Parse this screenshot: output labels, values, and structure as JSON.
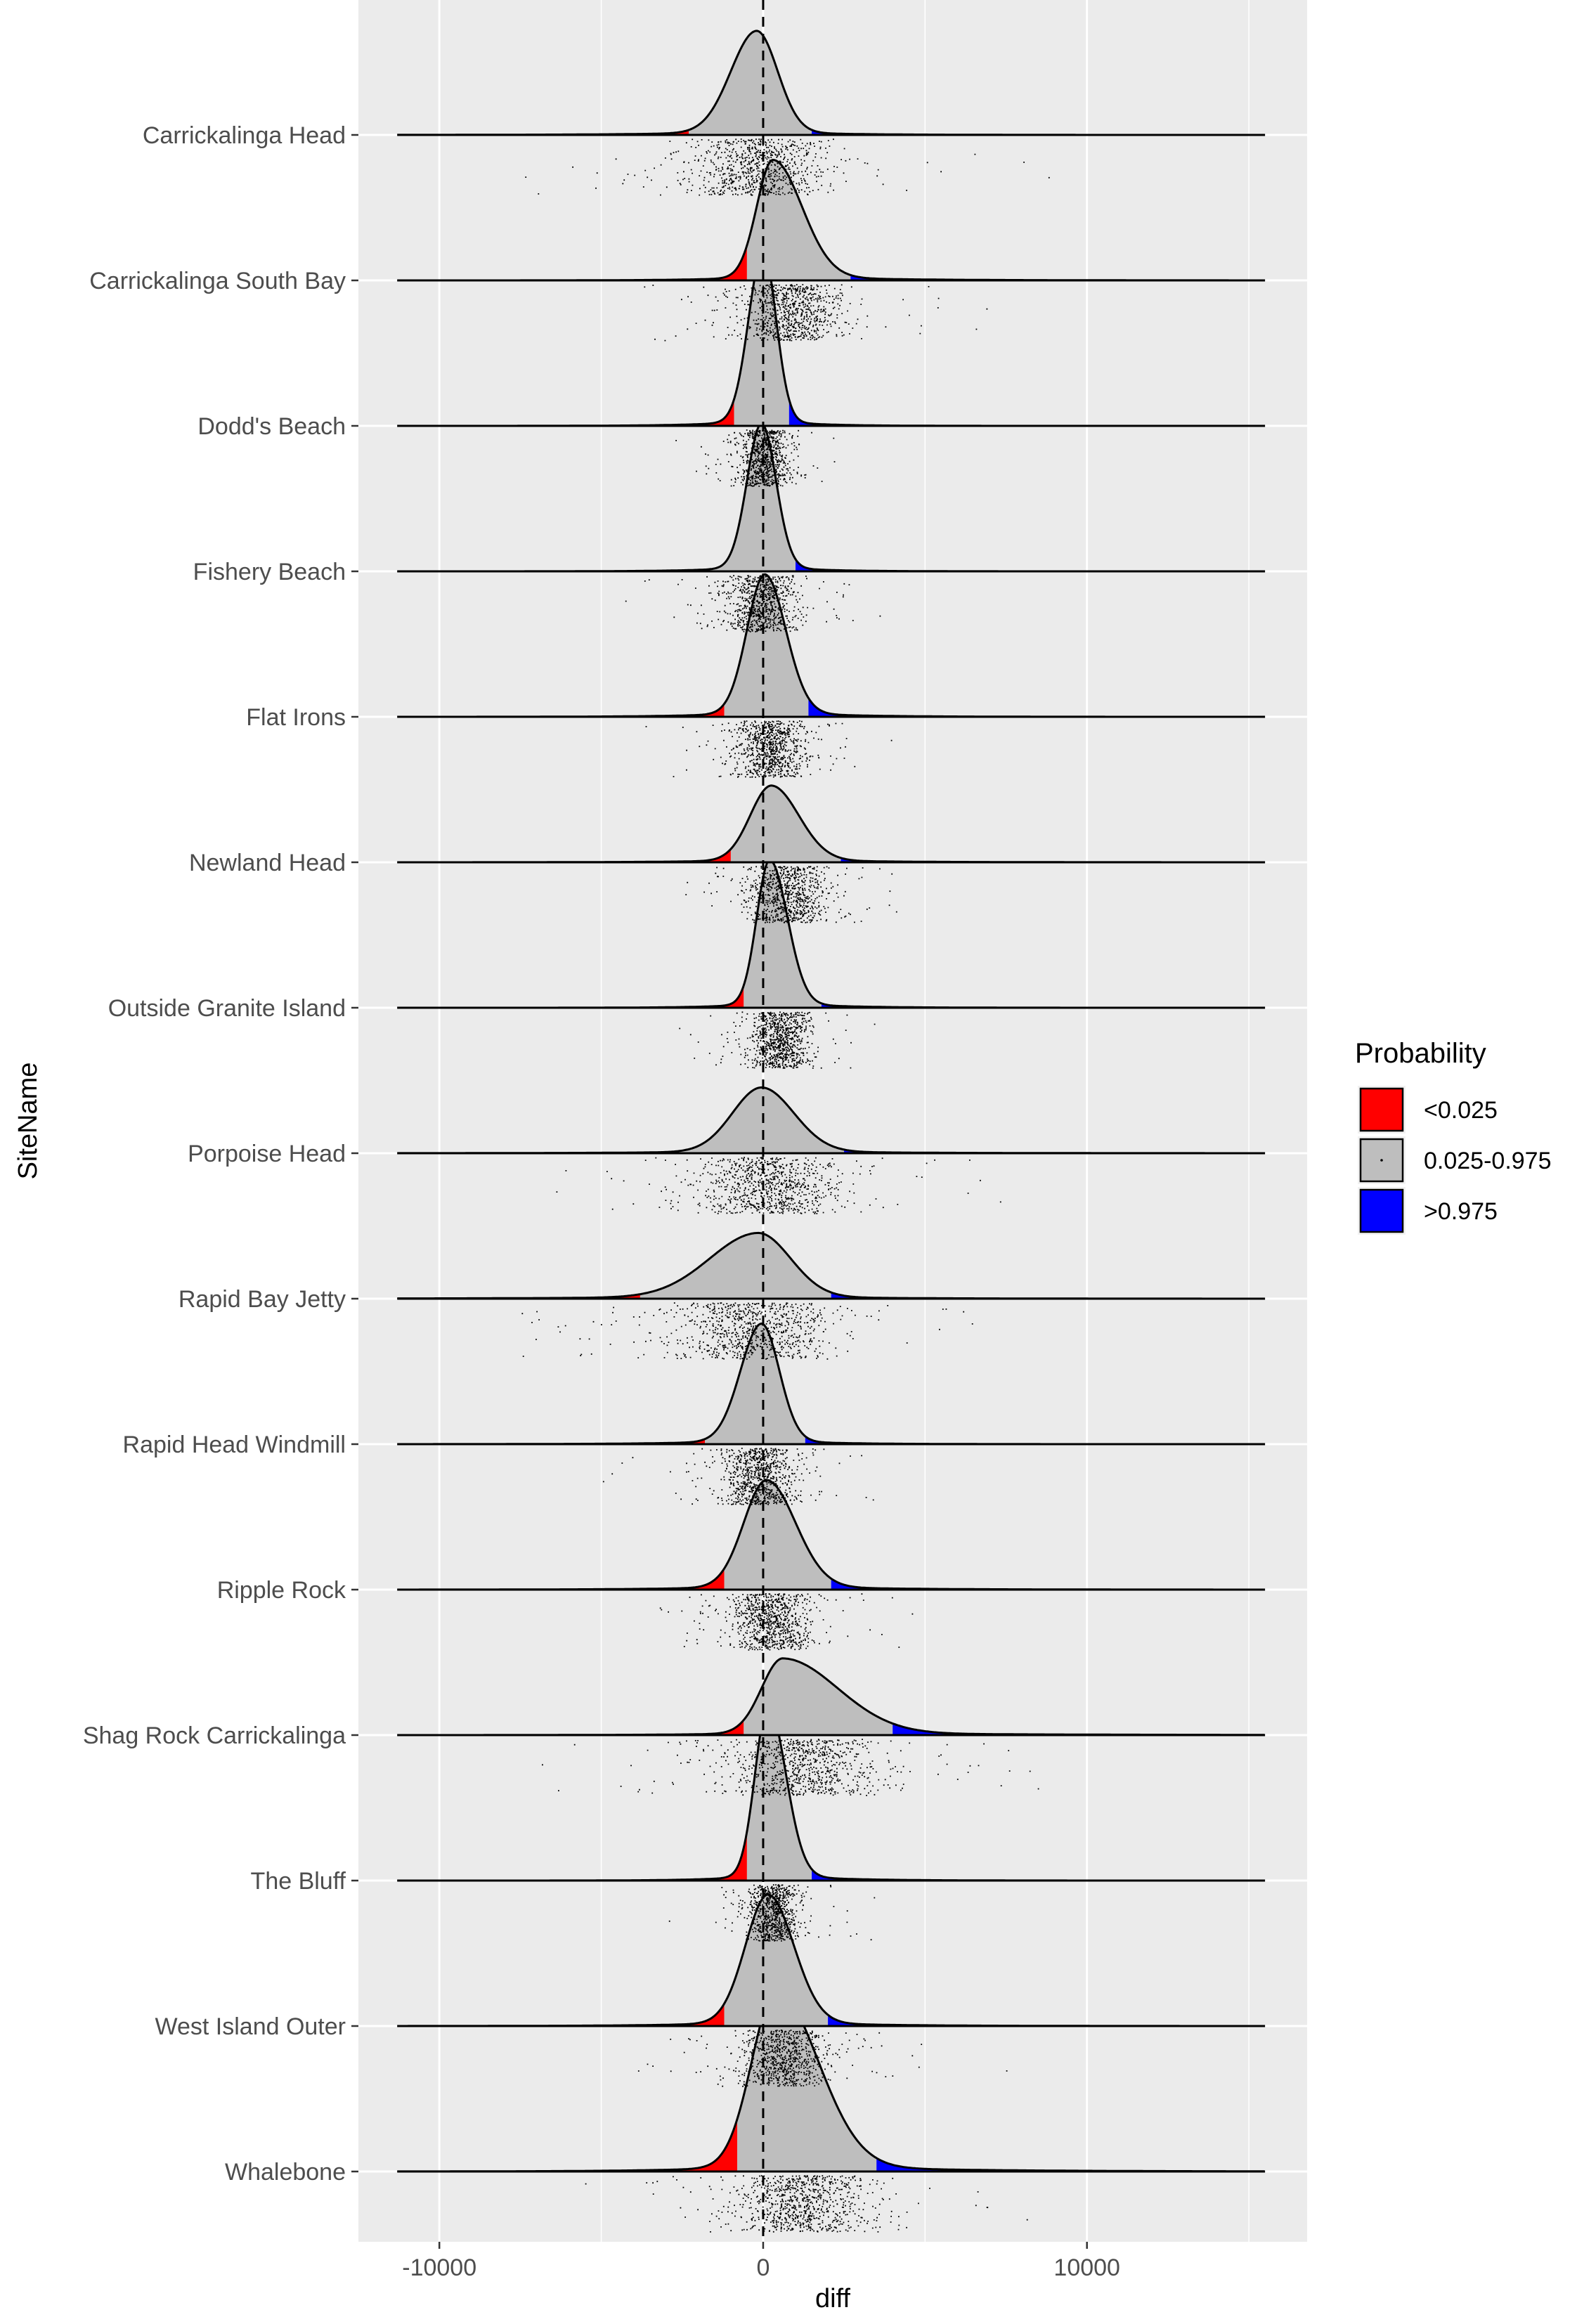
{
  "chart_data": {
    "type": "ridgeline",
    "xlabel": "diff",
    "ylabel": "SiteName",
    "xlim": [
      -12500,
      16800
    ],
    "x_ticks": [
      -10000,
      0,
      10000
    ],
    "x_tick_labels": [
      "-10000",
      "0",
      "10000"
    ],
    "reference_line_x": 0,
    "legend": {
      "title": "Probability",
      "position": "right",
      "entries": [
        {
          "label": "<0.025",
          "color": "#ff0000"
        },
        {
          "label": "0.025-0.975",
          "color": "#bebebe"
        },
        {
          "label": ">0.975",
          "color": "#0000ff"
        }
      ]
    },
    "sites": [
      {
        "name": "Whalebone",
        "mode": 400,
        "sd_left": 750,
        "sd_right": 1300,
        "peak": 1.65,
        "q_low": -800,
        "q_high": 3500,
        "jitter_center": 1200,
        "jitter_spread": 1800
      },
      {
        "name": "West Island Outer",
        "mode": 150,
        "sd_left": 700,
        "sd_right": 800,
        "peak": 1.2,
        "q_low": -1200,
        "q_high": 2000,
        "jitter_center": 600,
        "jitter_spread": 1100
      },
      {
        "name": "The Bluff",
        "mode": 150,
        "sd_left": 400,
        "sd_right": 550,
        "peak": 1.6,
        "q_low": -500,
        "q_high": 1500,
        "jitter_center": 300,
        "jitter_spread": 700
      },
      {
        "name": "Shag Rock Carrickalinga",
        "mode": 600,
        "sd_left": 650,
        "sd_right": 1700,
        "peak": 0.7,
        "q_low": -600,
        "q_high": 4000,
        "jitter_center": 1200,
        "jitter_spread": 2000
      },
      {
        "name": "Ripple Rock",
        "mode": 100,
        "sd_left": 700,
        "sd_right": 900,
        "peak": 1.0,
        "q_low": -1200,
        "q_high": 2100,
        "jitter_center": 200,
        "jitter_spread": 1100
      },
      {
        "name": "Rapid Head Windmill",
        "mode": -50,
        "sd_left": 650,
        "sd_right": 550,
        "peak": 1.1,
        "q_low": -1800,
        "q_high": 1300,
        "jitter_center": -100,
        "jitter_spread": 1000
      },
      {
        "name": "Rapid Bay Jetty",
        "mode": -150,
        "sd_left": 1500,
        "sd_right": 1000,
        "peak": 0.6,
        "q_low": -3800,
        "q_high": 2100,
        "jitter_center": -300,
        "jitter_spread": 2200
      },
      {
        "name": "Porpoise Head",
        "mode": -50,
        "sd_left": 900,
        "sd_right": 1000,
        "peak": 0.6,
        "q_low": -2600,
        "q_high": 2500,
        "jitter_center": 200,
        "jitter_spread": 1800
      },
      {
        "name": "Outside Granite Island",
        "mode": 200,
        "sd_left": 400,
        "sd_right": 550,
        "peak": 1.35,
        "q_low": -600,
        "q_high": 1800,
        "jitter_center": 500,
        "jitter_spread": 800
      },
      {
        "name": "Newland Head",
        "mode": 250,
        "sd_left": 650,
        "sd_right": 850,
        "peak": 0.7,
        "q_low": -1000,
        "q_high": 2400,
        "jitter_center": 700,
        "jitter_spread": 1100
      },
      {
        "name": "Flat Irons",
        "mode": 50,
        "sd_left": 550,
        "sd_right": 650,
        "peak": 1.3,
        "q_low": -1200,
        "q_high": 1400,
        "jitter_center": 200,
        "jitter_spread": 900
      },
      {
        "name": "Fishery Beach",
        "mode": -50,
        "sd_left": 450,
        "sd_right": 450,
        "peak": 1.35,
        "q_low": -1700,
        "q_high": 1000,
        "jitter_center": -100,
        "jitter_spread": 900
      },
      {
        "name": "Dodd's Beach",
        "mode": 0,
        "sd_left": 450,
        "sd_right": 400,
        "peak": 1.6,
        "q_low": -900,
        "q_high": 800,
        "jitter_center": 0,
        "jitter_spread": 700
      },
      {
        "name": "Carrickalinga South Bay",
        "mode": 300,
        "sd_left": 500,
        "sd_right": 900,
        "peak": 1.1,
        "q_low": -500,
        "q_high": 2700,
        "jitter_center": 800,
        "jitter_spread": 1400
      },
      {
        "name": "Carrickalinga Head",
        "mode": -200,
        "sd_left": 800,
        "sd_right": 650,
        "peak": 0.95,
        "q_low": -2300,
        "q_high": 1500,
        "jitter_center": -200,
        "jitter_spread": 1800
      }
    ]
  }
}
